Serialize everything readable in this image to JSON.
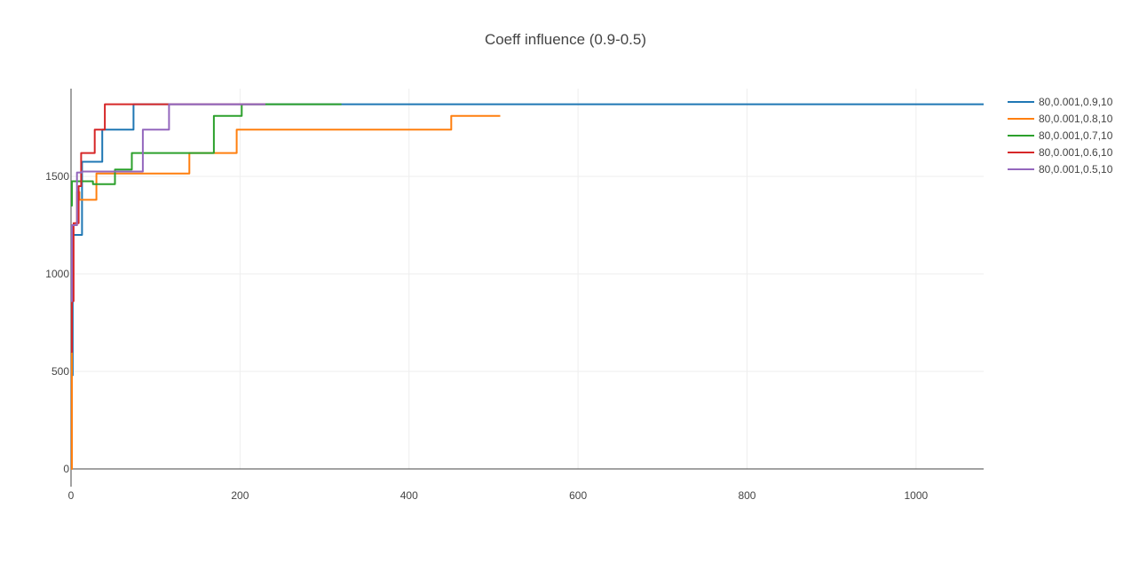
{
  "chart_data": {
    "type": "line",
    "line_shape": "step",
    "title": "Coeff influence (0.9-0.5)",
    "xlabel": "",
    "ylabel": "",
    "xlim": [
      0,
      1080
    ],
    "ylim": [
      0,
      1950
    ],
    "x_ticks": [
      0,
      200,
      400,
      600,
      800,
      1000
    ],
    "y_ticks": [
      0,
      500,
      1000,
      1500
    ],
    "grid": true,
    "legend_position": "top-right",
    "series": [
      {
        "name": "80,0.001,0.9,10",
        "color": "#1f77b4",
        "x": [
          0,
          1,
          2,
          8,
          13,
          37,
          74,
          1080
        ],
        "y": [
          0,
          480,
          1200,
          1200,
          1575,
          1740,
          1870,
          1870
        ]
      },
      {
        "name": "80,0.001,0.8,10",
        "color": "#ff7f0e",
        "x": [
          0,
          1,
          7,
          10,
          30,
          140,
          196,
          450,
          508
        ],
        "y": [
          0,
          1250,
          1420,
          1380,
          1515,
          1620,
          1740,
          1810,
          1810
        ]
      },
      {
        "name": "80,0.001,0.7,10",
        "color": "#2ca02c",
        "x": [
          0,
          1,
          26,
          52,
          72,
          169,
          202,
          320
        ],
        "y": [
          1350,
          1475,
          1460,
          1535,
          1620,
          1810,
          1870,
          1870
        ]
      },
      {
        "name": "80,0.001,0.6,10",
        "color": "#d62728",
        "x": [
          0,
          1,
          3,
          9,
          12,
          28,
          40,
          230
        ],
        "y": [
          600,
          860,
          1260,
          1450,
          1620,
          1740,
          1870,
          1870
        ]
      },
      {
        "name": "80,0.001,0.5,10",
        "color": "#9467bd",
        "x": [
          0,
          1,
          7,
          13,
          85,
          116,
          230
        ],
        "y": [
          860,
          1250,
          1520,
          1525,
          1740,
          1870,
          1870
        ]
      }
    ]
  }
}
